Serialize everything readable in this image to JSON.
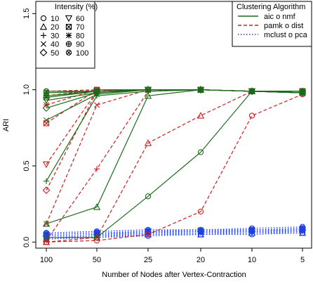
{
  "chart_data": {
    "type": "line",
    "xlabel": "Number of Nodes after Vertex-Contraction",
    "ylabel": "ARI",
    "categories": [
      "100",
      "50",
      "25",
      "20",
      "10",
      "5"
    ],
    "ylim": [
      -0.04,
      1.58
    ],
    "yticks": [
      "0.0",
      "0.5",
      "1.0",
      "1.5"
    ],
    "grid": false,
    "intensity_legend": {
      "title": "Intensity (%)",
      "placement": "top-left",
      "items": [
        {
          "symbol": "circle",
          "label": "10"
        },
        {
          "symbol": "triangle-up",
          "label": "20"
        },
        {
          "symbol": "plus",
          "label": "30"
        },
        {
          "symbol": "cross",
          "label": "40"
        },
        {
          "symbol": "diamond",
          "label": "50"
        },
        {
          "symbol": "triangle-down",
          "label": "60"
        },
        {
          "symbol": "boxcross",
          "label": "70"
        },
        {
          "symbol": "asterisk",
          "label": "80"
        },
        {
          "symbol": "circleplus",
          "label": "90"
        },
        {
          "symbol": "circlecross",
          "label": "100"
        }
      ]
    },
    "algorithm_legend": {
      "title": "Clustering Algorithm",
      "placement": "top-right",
      "items": [
        {
          "label": "aic o nmf",
          "color": "#1a6b1a",
          "dash": "solid"
        },
        {
          "label": "pamk o dist",
          "color": "#cc1f1f",
          "dash": "dashed"
        },
        {
          "label": "mclust o pca",
          "color": "#1f3fe0",
          "dash": "dotted"
        }
      ]
    },
    "series": [
      {
        "algorithm": "aic o nmf",
        "intensity": "10",
        "symbol": "circle",
        "values": [
          0.03,
          0.03,
          0.3,
          0.59,
          0.99,
          0.99
        ]
      },
      {
        "algorithm": "aic o nmf",
        "intensity": "20",
        "symbol": "triangle-up",
        "values": [
          0.12,
          0.23,
          0.96,
          1.0,
          0.99,
          0.99
        ]
      },
      {
        "algorithm": "aic o nmf",
        "intensity": "30",
        "symbol": "plus",
        "values": [
          0.4,
          0.96,
          0.99,
          1.0,
          0.99,
          0.98
        ]
      },
      {
        "algorithm": "aic o nmf",
        "intensity": "40",
        "symbol": "cross",
        "values": [
          0.8,
          0.97,
          1.0,
          1.0,
          0.99,
          0.98
        ]
      },
      {
        "algorithm": "aic o nmf",
        "intensity": "50",
        "symbol": "diamond",
        "values": [
          0.88,
          0.98,
          1.0,
          1.0,
          0.99,
          0.98
        ]
      },
      {
        "algorithm": "aic o nmf",
        "intensity": "60",
        "symbol": "triangle-down",
        "values": [
          0.93,
          0.98,
          1.0,
          1.0,
          0.99,
          0.98
        ]
      },
      {
        "algorithm": "aic o nmf",
        "intensity": "70",
        "symbol": "boxcross",
        "values": [
          0.95,
          0.99,
          1.0,
          1.0,
          0.99,
          0.98
        ]
      },
      {
        "algorithm": "aic o nmf",
        "intensity": "80",
        "symbol": "asterisk",
        "values": [
          0.96,
          0.99,
          1.0,
          1.0,
          0.99,
          0.99
        ]
      },
      {
        "algorithm": "aic o nmf",
        "intensity": "90",
        "symbol": "circleplus",
        "values": [
          0.98,
          0.99,
          1.0,
          1.0,
          0.99,
          0.99
        ]
      },
      {
        "algorithm": "aic o nmf",
        "intensity": "100",
        "symbol": "circlecross",
        "values": [
          0.99,
          0.99,
          1.0,
          1.0,
          0.99,
          0.99
        ]
      },
      {
        "algorithm": "pamk o dist",
        "intensity": "10",
        "symbol": "circle",
        "values": [
          0.0,
          0.01,
          0.05,
          0.2,
          0.83,
          0.97
        ]
      },
      {
        "algorithm": "pamk o dist",
        "intensity": "20",
        "symbol": "triangle-up",
        "values": [
          0.0,
          0.03,
          0.65,
          0.83,
          0.99,
          0.98
        ]
      },
      {
        "algorithm": "pamk o dist",
        "intensity": "30",
        "symbol": "plus",
        "values": [
          0.01,
          0.48,
          0.99,
          1.0,
          0.99,
          0.98
        ]
      },
      {
        "algorithm": "pamk o dist",
        "intensity": "40",
        "symbol": "cross",
        "values": [
          0.12,
          0.9,
          1.0,
          1.0,
          0.99,
          0.99
        ]
      },
      {
        "algorithm": "pamk o dist",
        "intensity": "50",
        "symbol": "diamond",
        "values": [
          0.34,
          0.99,
          1.0,
          1.0,
          0.99,
          0.99
        ]
      },
      {
        "algorithm": "pamk o dist",
        "intensity": "60",
        "symbol": "triangle-down",
        "values": [
          0.51,
          0.99,
          1.0,
          1.0,
          0.99,
          0.99
        ]
      },
      {
        "algorithm": "pamk o dist",
        "intensity": "70",
        "symbol": "boxcross",
        "values": [
          0.78,
          1.0,
          1.0,
          1.0,
          0.99,
          0.99
        ]
      },
      {
        "algorithm": "pamk o dist",
        "intensity": "80",
        "symbol": "asterisk",
        "values": [
          0.9,
          1.0,
          1.0,
          1.0,
          0.99,
          0.99
        ]
      },
      {
        "algorithm": "pamk o dist",
        "intensity": "90",
        "symbol": "circleplus",
        "values": [
          0.96,
          1.0,
          1.0,
          1.0,
          0.99,
          0.99
        ]
      },
      {
        "algorithm": "pamk o dist",
        "intensity": "100",
        "symbol": "circlecross",
        "values": [
          0.99,
          1.0,
          1.0,
          1.0,
          0.99,
          0.99
        ]
      },
      {
        "algorithm": "mclust o pca",
        "intensity": "10",
        "symbol": "circle",
        "values": [
          0.02,
          0.03,
          0.04,
          0.05,
          0.05,
          0.06
        ]
      },
      {
        "algorithm": "mclust o pca",
        "intensity": "20",
        "symbol": "triangle-up",
        "values": [
          0.02,
          0.03,
          0.05,
          0.05,
          0.06,
          0.06
        ]
      },
      {
        "algorithm": "mclust o pca",
        "intensity": "30",
        "symbol": "plus",
        "values": [
          0.03,
          0.04,
          0.05,
          0.06,
          0.06,
          0.07
        ]
      },
      {
        "algorithm": "mclust o pca",
        "intensity": "40",
        "symbol": "cross",
        "values": [
          0.03,
          0.04,
          0.06,
          0.06,
          0.07,
          0.07
        ]
      },
      {
        "algorithm": "mclust o pca",
        "intensity": "50",
        "symbol": "diamond",
        "values": [
          0.04,
          0.05,
          0.06,
          0.07,
          0.07,
          0.08
        ]
      },
      {
        "algorithm": "mclust o pca",
        "intensity": "60",
        "symbol": "triangle-down",
        "values": [
          0.04,
          0.05,
          0.07,
          0.07,
          0.07,
          0.08
        ]
      },
      {
        "algorithm": "mclust o pca",
        "intensity": "70",
        "symbol": "boxcross",
        "values": [
          0.05,
          0.06,
          0.07,
          0.07,
          0.08,
          0.08
        ]
      },
      {
        "algorithm": "mclust o pca",
        "intensity": "80",
        "symbol": "asterisk",
        "values": [
          0.05,
          0.06,
          0.07,
          0.08,
          0.08,
          0.09
        ]
      },
      {
        "algorithm": "mclust o pca",
        "intensity": "90",
        "symbol": "circleplus",
        "values": [
          0.06,
          0.07,
          0.08,
          0.08,
          0.08,
          0.09
        ]
      },
      {
        "algorithm": "mclust o pca",
        "intensity": "100",
        "symbol": "circlecross",
        "values": [
          0.06,
          0.07,
          0.08,
          0.08,
          0.09,
          0.1
        ]
      }
    ]
  }
}
